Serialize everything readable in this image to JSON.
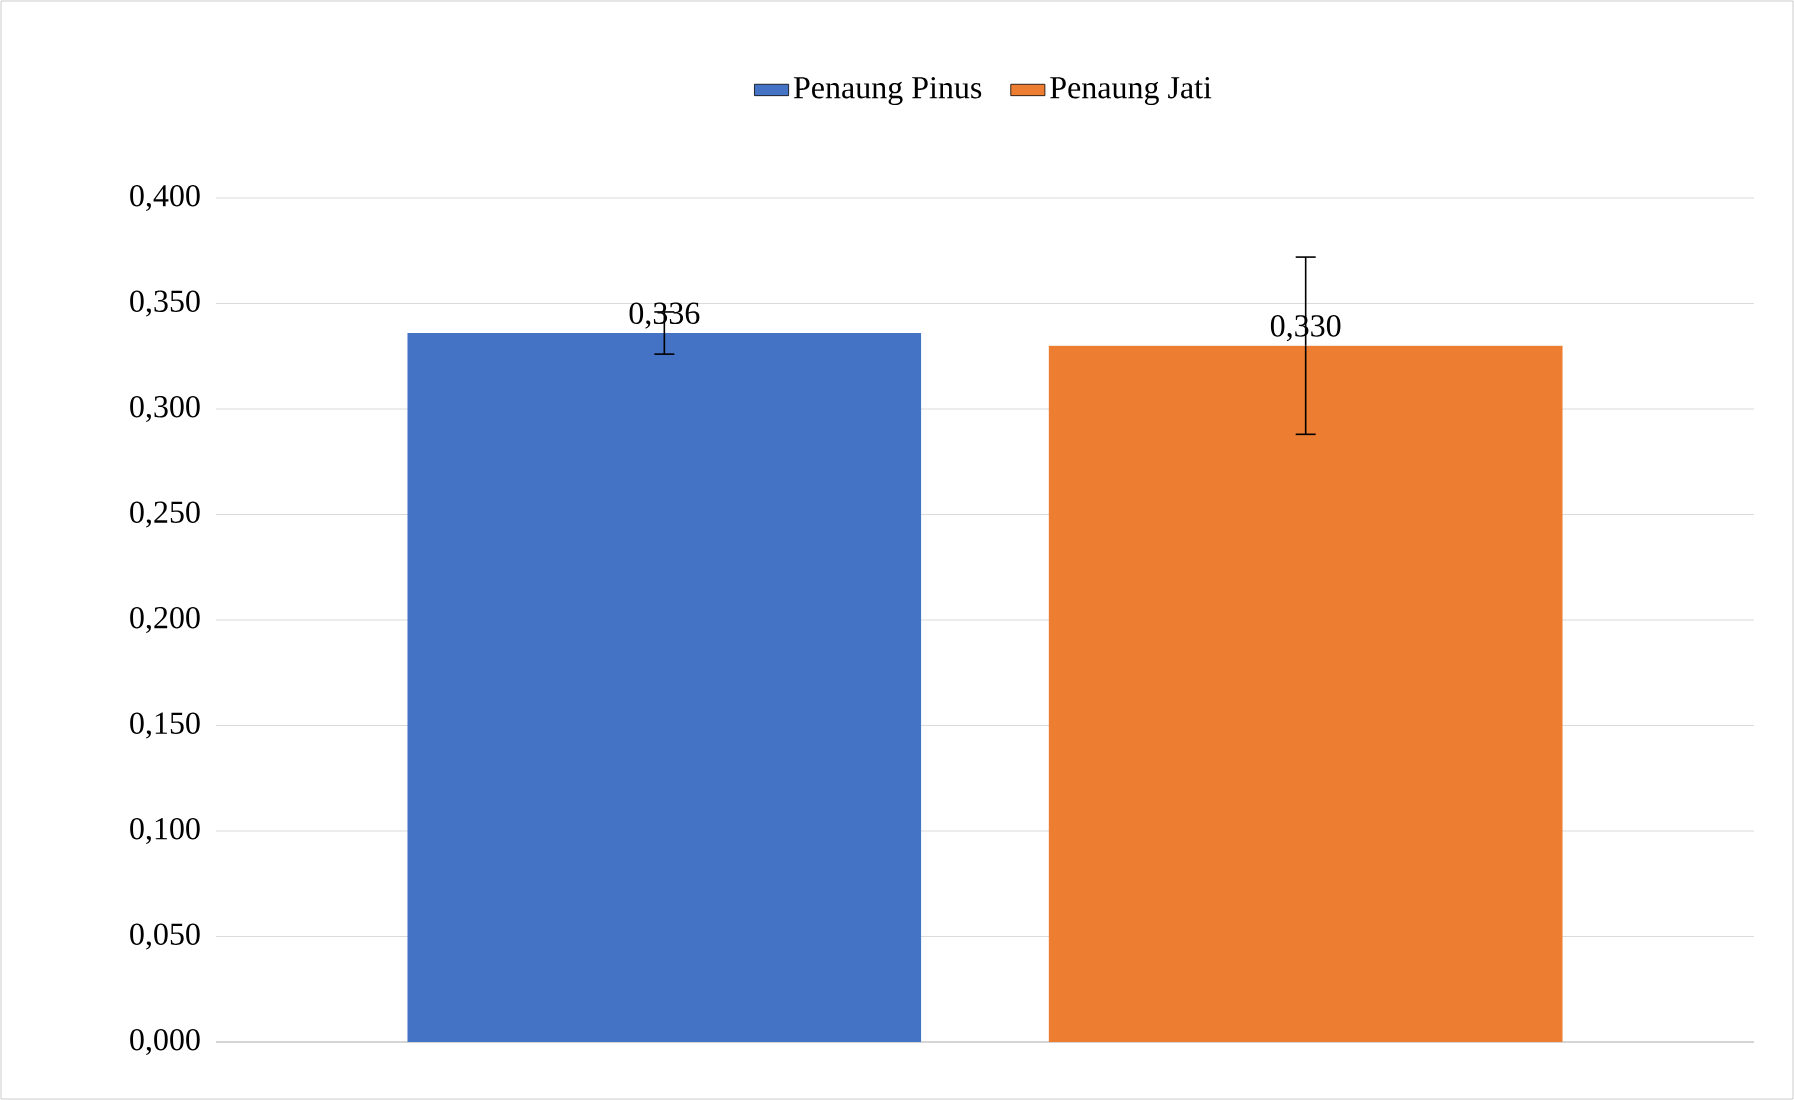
{
  "chart_data": {
    "type": "bar",
    "categories": [
      null
    ],
    "series": [
      {
        "name": "Penaung Pinus",
        "color": "#4472c4",
        "values": [
          0.336
        ],
        "errors": [
          0.01
        ],
        "value_labels": [
          "0,336"
        ]
      },
      {
        "name": "Penaung Jati",
        "color": "#ed7d31",
        "values": [
          0.33
        ],
        "errors": [
          0.042
        ],
        "value_labels": [
          "0,330"
        ]
      }
    ],
    "ylim": [
      0,
      0.4
    ],
    "yticks": [
      {
        "value": 0,
        "label": "0,000"
      },
      {
        "value": 0.05,
        "label": "0,050"
      },
      {
        "value": 0.1,
        "label": "0,100"
      },
      {
        "value": 0.15,
        "label": "0,150"
      },
      {
        "value": 0.2,
        "label": "0,200"
      },
      {
        "value": 0.25,
        "label": "0,250"
      },
      {
        "value": 0.3,
        "label": "0,300"
      },
      {
        "value": 0.35,
        "label": "0,350"
      },
      {
        "value": 0.4,
        "label": "0,400"
      }
    ],
    "grid": "y",
    "legend": "top"
  }
}
